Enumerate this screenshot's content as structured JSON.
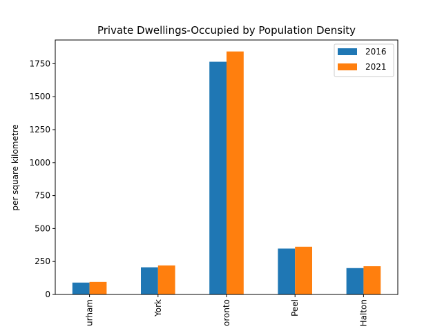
{
  "chart_data": {
    "type": "bar",
    "title": "Private Dwellings-Occupied by Population Density",
    "xlabel": "",
    "ylabel": "per square kilometre",
    "categories": [
      "Durham",
      "York",
      "Toronto",
      "Peel",
      "Halton"
    ],
    "visible_tick_labels": [
      "urham",
      "York",
      "oronto",
      "Peel",
      "Halton"
    ],
    "series": [
      {
        "name": "2016",
        "color": "#1f77b4",
        "values": [
          90,
          206,
          1765,
          348,
          200
        ]
      },
      {
        "name": "2021",
        "color": "#ff7f0e",
        "values": [
          95,
          220,
          1843,
          362,
          214
        ]
      }
    ],
    "ylim": [
      0,
      1930
    ],
    "yticks": [
      0,
      250,
      500,
      750,
      1000,
      1250,
      1500,
      1750
    ],
    "grid": false,
    "legend_position": "top-right"
  }
}
